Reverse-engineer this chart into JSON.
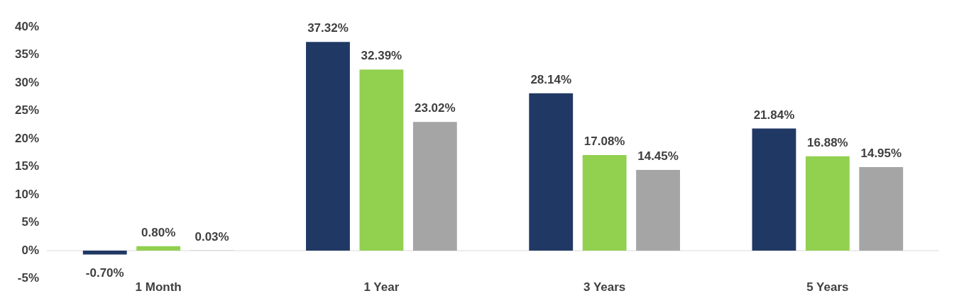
{
  "chart_data": {
    "type": "bar",
    "categories": [
      "1 Month",
      "1 Year",
      "3 Years",
      "5 Years"
    ],
    "series": [
      {
        "color": "#203864",
        "values": [
          -0.7,
          37.32,
          28.14,
          21.84
        ],
        "value_labels": [
          "-0.70%",
          "37.32%",
          "28.14%",
          "21.84%"
        ]
      },
      {
        "color": "#92d050",
        "values": [
          0.8,
          32.39,
          17.08,
          16.88
        ],
        "value_labels": [
          "0.80%",
          "32.39%",
          "17.08%",
          "16.88%"
        ]
      },
      {
        "color": "#a5a5a5",
        "values": [
          0.03,
          23.02,
          14.45,
          14.95
        ],
        "value_labels": [
          "0.03%",
          "23.02%",
          "14.45%",
          "14.95%"
        ]
      }
    ],
    "ylim": [
      -5,
      40
    ],
    "yticks": [
      {
        "value": -5,
        "label": "-5%"
      },
      {
        "value": 0,
        "label": "0%"
      },
      {
        "value": 5,
        "label": "5%"
      },
      {
        "value": 10,
        "label": "10%"
      },
      {
        "value": 15,
        "label": "15%"
      },
      {
        "value": 20,
        "label": "20%"
      },
      {
        "value": 25,
        "label": "25%"
      },
      {
        "value": 30,
        "label": "30%"
      },
      {
        "value": 35,
        "label": "35%"
      },
      {
        "value": 40,
        "label": "40%"
      }
    ],
    "grid": false,
    "legend": false
  }
}
